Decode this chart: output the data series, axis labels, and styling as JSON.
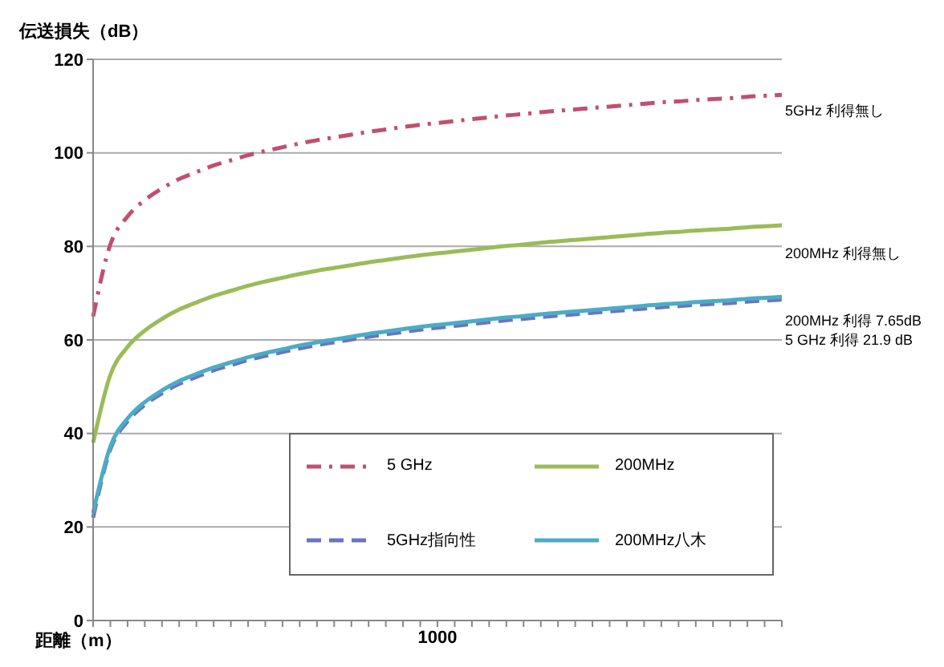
{
  "chart_data": {
    "type": "line",
    "ylabel": "伝送損失（dB）",
    "xlabel": "距離（m）",
    "categories": [
      null,
      null,
      null,
      null,
      null,
      null,
      null,
      null,
      null,
      null,
      null,
      null,
      null,
      null,
      null,
      null,
      null,
      null,
      null,
      null,
      "1000",
      null,
      null,
      null,
      null,
      null,
      null,
      null,
      null,
      null,
      null,
      null,
      null,
      null,
      null,
      null,
      null,
      null,
      null,
      null,
      null
    ],
    "ylim": [
      0,
      120
    ],
    "yticks": [
      0,
      20,
      40,
      60,
      80,
      100,
      120
    ],
    "grid": "y",
    "legend": "bottom",
    "marker": "none",
    "series": [
      {
        "name": "5 GHz",
        "color": "#c0506e",
        "line_style": "dashdot",
        "values": [
          65,
          80.4,
          86.4,
          89.9,
          92.4,
          94.4,
          95.9,
          97.3,
          98.4,
          99.5,
          100.4,
          101.2,
          102.0,
          102.7,
          103.3,
          103.9,
          104.5,
          105.0,
          105.5,
          106.0,
          106.4,
          106.8,
          107.2,
          107.6,
          108.0,
          108.3,
          108.7,
          109.0,
          109.3,
          109.6,
          109.9,
          110.2,
          110.5,
          110.8,
          111.0,
          111.3,
          111.5,
          111.7,
          112.0,
          112.2,
          112.4
        ]
      },
      {
        "name": "200MHz",
        "color": "#9bbb59",
        "line_style": "solid",
        "values": [
          38,
          52.5,
          58.5,
          62.0,
          64.5,
          66.5,
          68.0,
          69.4,
          70.5,
          71.6,
          72.5,
          73.3,
          74.1,
          74.8,
          75.4,
          76.0,
          76.6,
          77.1,
          77.6,
          78.1,
          78.5,
          78.9,
          79.3,
          79.7,
          80.1,
          80.4,
          80.8,
          81.1,
          81.4,
          81.7,
          82.0,
          82.3,
          82.6,
          82.9,
          83.1,
          83.4,
          83.6,
          83.8,
          84.1,
          84.3,
          84.5
        ]
      },
      {
        "name": "5GHz指向性",
        "color": "#6a74c0",
        "line_style": "dashed",
        "values": [
          22,
          36.6,
          42.6,
          46.1,
          48.6,
          50.6,
          52.1,
          53.5,
          54.6,
          55.7,
          56.6,
          57.4,
          58.2,
          58.9,
          59.5,
          60.1,
          60.7,
          61.2,
          61.7,
          62.2,
          62.6,
          63.0,
          63.4,
          63.8,
          64.2,
          64.5,
          64.9,
          65.2,
          65.5,
          65.8,
          66.1,
          66.4,
          66.7,
          67.0,
          67.2,
          67.5,
          67.7,
          67.9,
          68.2,
          68.4,
          68.6
        ]
      },
      {
        "name": "200MHz八木",
        "color": "#4bacc6",
        "line_style": "solid",
        "values": [
          23,
          37.2,
          43.2,
          46.7,
          49.2,
          51.2,
          52.7,
          54.1,
          55.2,
          56.3,
          57.2,
          58.0,
          58.8,
          59.5,
          60.1,
          60.7,
          61.3,
          61.8,
          62.3,
          62.8,
          63.2,
          63.6,
          64.0,
          64.4,
          64.8,
          65.1,
          65.5,
          65.8,
          66.1,
          66.4,
          66.7,
          67.0,
          67.3,
          67.6,
          67.8,
          68.1,
          68.3,
          68.5,
          68.8,
          69.0,
          69.2
        ]
      }
    ],
    "annotations": [
      "5GHz 利得無し",
      "200MHz 利得無し",
      "200MHz 利得 7.65dB",
      "5 GHz 利得 21.9 dB"
    ]
  }
}
